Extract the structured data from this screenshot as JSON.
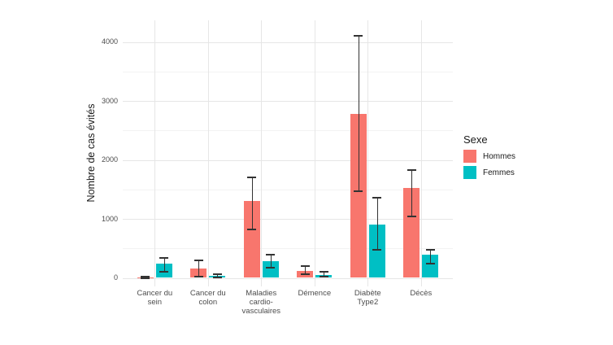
{
  "chart_data": {
    "type": "bar",
    "title": "",
    "xlabel": "",
    "ylabel": "Nombre de cas évités",
    "legend_title": "Sexe",
    "legend_position": "right",
    "grid": true,
    "ylim": [
      0,
      4400
    ],
    "y_major_ticks": [
      0,
      1000,
      2000,
      3000,
      4000
    ],
    "y_minor_ticks": [
      500,
      1500,
      2500,
      3500
    ],
    "categories": [
      "Cancer du sein",
      "Cancer du colon",
      "Maladies cardio-vasculaires",
      "Démence",
      "Diabète Type2",
      "Décès"
    ],
    "category_label_lines": [
      [
        "Cancer du",
        "sein"
      ],
      [
        "Cancer du",
        "colon"
      ],
      [
        "Maladies",
        "cardio-",
        "vasculaires"
      ],
      [
        "Démence"
      ],
      [
        "Diabète",
        "Type2"
      ],
      [
        "Décès"
      ]
    ],
    "series": [
      {
        "name": "Hommes",
        "color": "#F8766D",
        "values": [
          10,
          160,
          1300,
          120,
          2780,
          1530
        ],
        "error_low": [
          0,
          20,
          820,
          60,
          1470,
          1040
        ],
        "error_high": [
          25,
          290,
          1710,
          195,
          4100,
          1830
        ]
      },
      {
        "name": "Femmes",
        "color": "#00BFC4",
        "values": [
          245,
          30,
          285,
          55,
          910,
          390
        ],
        "error_low": [
          105,
          5,
          175,
          20,
          480,
          235
        ],
        "error_high": [
          340,
          60,
          390,
          100,
          1360,
          470
        ]
      }
    ],
    "error_bar_color": "#333333",
    "gridline_major_color": "#e6e6e6",
    "gridline_minor_color": "#f3f3f3",
    "tick_text_color": "#4d4d4d"
  }
}
